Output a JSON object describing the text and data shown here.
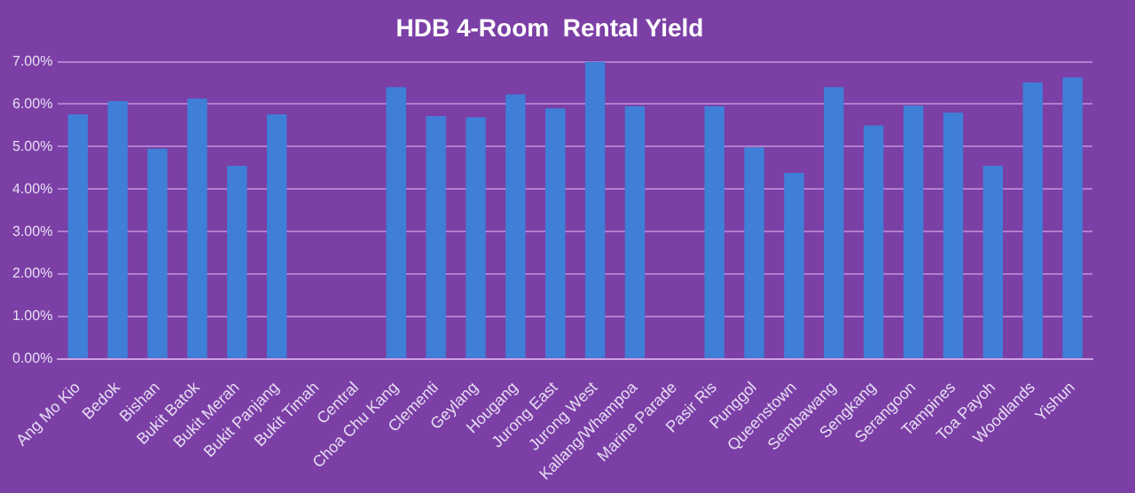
{
  "chart_data": {
    "type": "bar",
    "title": "HDB 4-Room  Rental Yield",
    "categories": [
      "Ang Mo Kio",
      "Bedok",
      "Bishan",
      "Bukit Batok",
      "Bukit Merah",
      "Bukit Panjang",
      "Bukit Timah",
      "Central",
      "Choa Chu Kang",
      "Clementi",
      "Geylang",
      "Hougang",
      "Jurong East",
      "Jurong West",
      "Kallang/Whampoa",
      "Marine Parade",
      "Pasir Ris",
      "Punggol",
      "Queenstown",
      "Sembawang",
      "Sengkang",
      "Serangoon",
      "Tampines",
      "Toa Payoh",
      "Woodlands",
      "Yishun"
    ],
    "values": [
      5.76,
      6.07,
      4.95,
      6.13,
      4.55,
      5.76,
      null,
      null,
      6.4,
      5.72,
      5.69,
      6.23,
      5.9,
      7.0,
      5.95,
      null,
      5.95,
      4.98,
      4.38,
      6.4,
      5.5,
      5.97,
      5.8,
      4.55,
      6.51,
      6.63
    ],
    "color": "#3f7fd8",
    "ylim": [
      0,
      7
    ],
    "yticks": [
      {
        "value": 0,
        "label": "0.00%"
      },
      {
        "value": 1,
        "label": "1.00%"
      },
      {
        "value": 2,
        "label": "2.00%"
      },
      {
        "value": 3,
        "label": "3.00%"
      },
      {
        "value": 4,
        "label": "4.00%"
      },
      {
        "value": 5,
        "label": "5.00%"
      },
      {
        "value": 6,
        "label": "6.00%"
      },
      {
        "value": 7,
        "label": "7.00%"
      }
    ],
    "grid": "y",
    "legend": false
  }
}
